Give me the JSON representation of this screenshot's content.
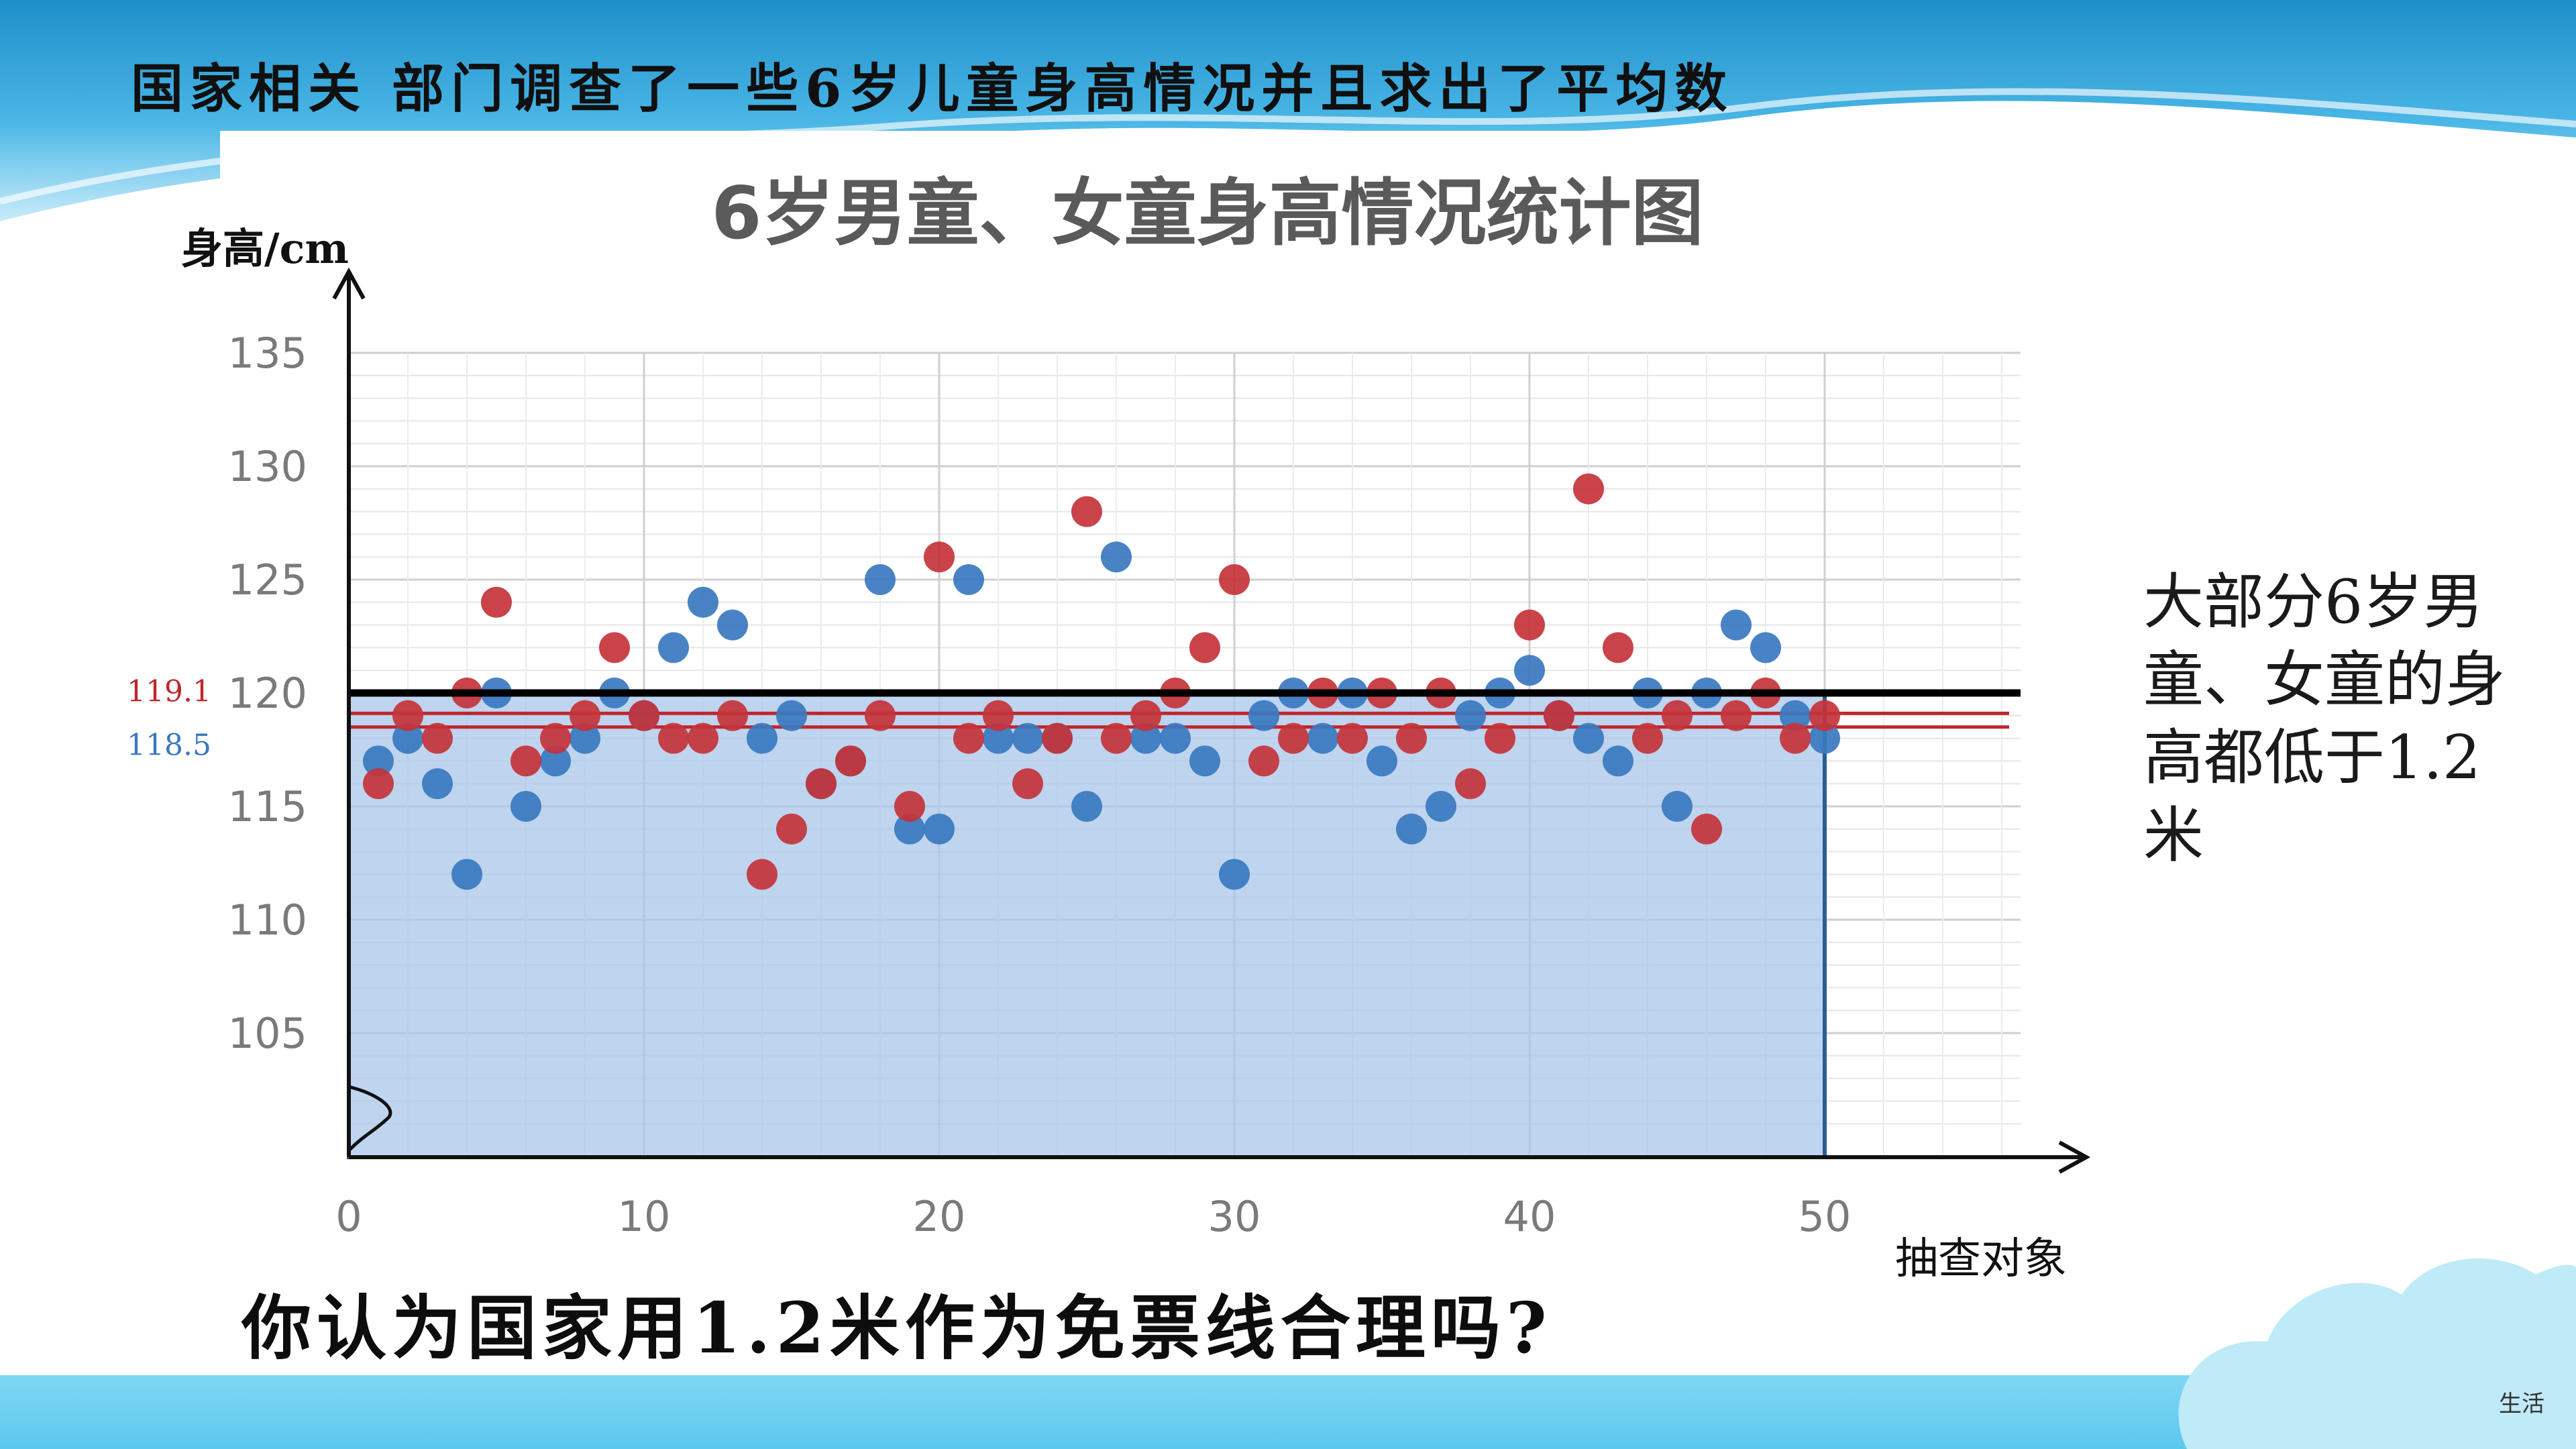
{
  "slide": {
    "title": "国家相关 部门调查了一些6岁儿童身高情况并且求出了平均数",
    "side_note": "大部分6岁男童、女童的身高都低于1.2米",
    "question": "你认为国家用1.2米作为免票线合理吗?",
    "corner_label": "生活"
  },
  "colors": {
    "boy": "#3a78c0",
    "girl": "#c4333a",
    "threshold_line": "#000000",
    "mean_lines": "#c0262c",
    "fill": "#a9c6e8",
    "sky_band": "#5fc4ea"
  },
  "chart_data": {
    "type": "scatter",
    "title": "6岁男童、女童身高情况统计图",
    "xlabel": "抽查对象",
    "ylabel": "身高/cm",
    "xlim": [
      0,
      62
    ],
    "ylim": [
      100,
      135
    ],
    "x_ticks": [
      0,
      10,
      20,
      30,
      40,
      50
    ],
    "y_ticks": [
      105,
      110,
      115,
      120,
      125,
      130,
      135
    ],
    "grid": true,
    "threshold": 120,
    "mean_lines": [
      {
        "label": "119.1",
        "value": 119.1,
        "color": "#c0262c"
      },
      {
        "label": "118.5",
        "value": 118.5,
        "color": "#3a78c0"
      }
    ],
    "series": [
      {
        "color": "#3a78c0",
        "x": [
          1,
          2,
          3,
          4,
          5,
          6,
          7,
          8,
          9,
          10,
          11,
          12,
          13,
          14,
          15,
          16,
          17,
          18,
          19,
          20,
          21,
          22,
          23,
          24,
          25,
          26,
          27,
          28,
          29,
          30,
          31,
          32,
          33,
          34,
          35,
          36,
          37,
          38,
          39,
          40,
          41,
          42,
          43,
          44,
          45,
          46,
          47,
          48,
          49,
          50
        ],
        "y": [
          117,
          118,
          116,
          112,
          120,
          115,
          117,
          118,
          120,
          119,
          122,
          124,
          123,
          118,
          119,
          116,
          117,
          125,
          114,
          114,
          125,
          118,
          118,
          118,
          115,
          126,
          118,
          118,
          117,
          112,
          119,
          120,
          118,
          120,
          117,
          114,
          115,
          119,
          120,
          121,
          119,
          118,
          117,
          120,
          115,
          120,
          123,
          122,
          119,
          118
        ]
      },
      {
        "color": "#c4333a",
        "x": [
          1,
          2,
          3,
          4,
          5,
          6,
          7,
          8,
          9,
          10,
          11,
          12,
          13,
          14,
          15,
          16,
          17,
          18,
          19,
          20,
          21,
          22,
          23,
          24,
          25,
          26,
          27,
          28,
          29,
          30,
          31,
          32,
          33,
          34,
          35,
          36,
          37,
          38,
          39,
          40,
          41,
          42,
          43,
          44,
          45,
          46,
          47,
          48,
          49,
          50
        ],
        "y": [
          116,
          119,
          118,
          120,
          124,
          117,
          118,
          119,
          122,
          119,
          118,
          118,
          119,
          112,
          114,
          116,
          117,
          119,
          115,
          126,
          118,
          119,
          116,
          118,
          128,
          118,
          119,
          120,
          122,
          125,
          117,
          118,
          120,
          118,
          120,
          118,
          120,
          116,
          118,
          123,
          119,
          129,
          122,
          118,
          119,
          114,
          119,
          120,
          118,
          119
        ]
      }
    ]
  }
}
